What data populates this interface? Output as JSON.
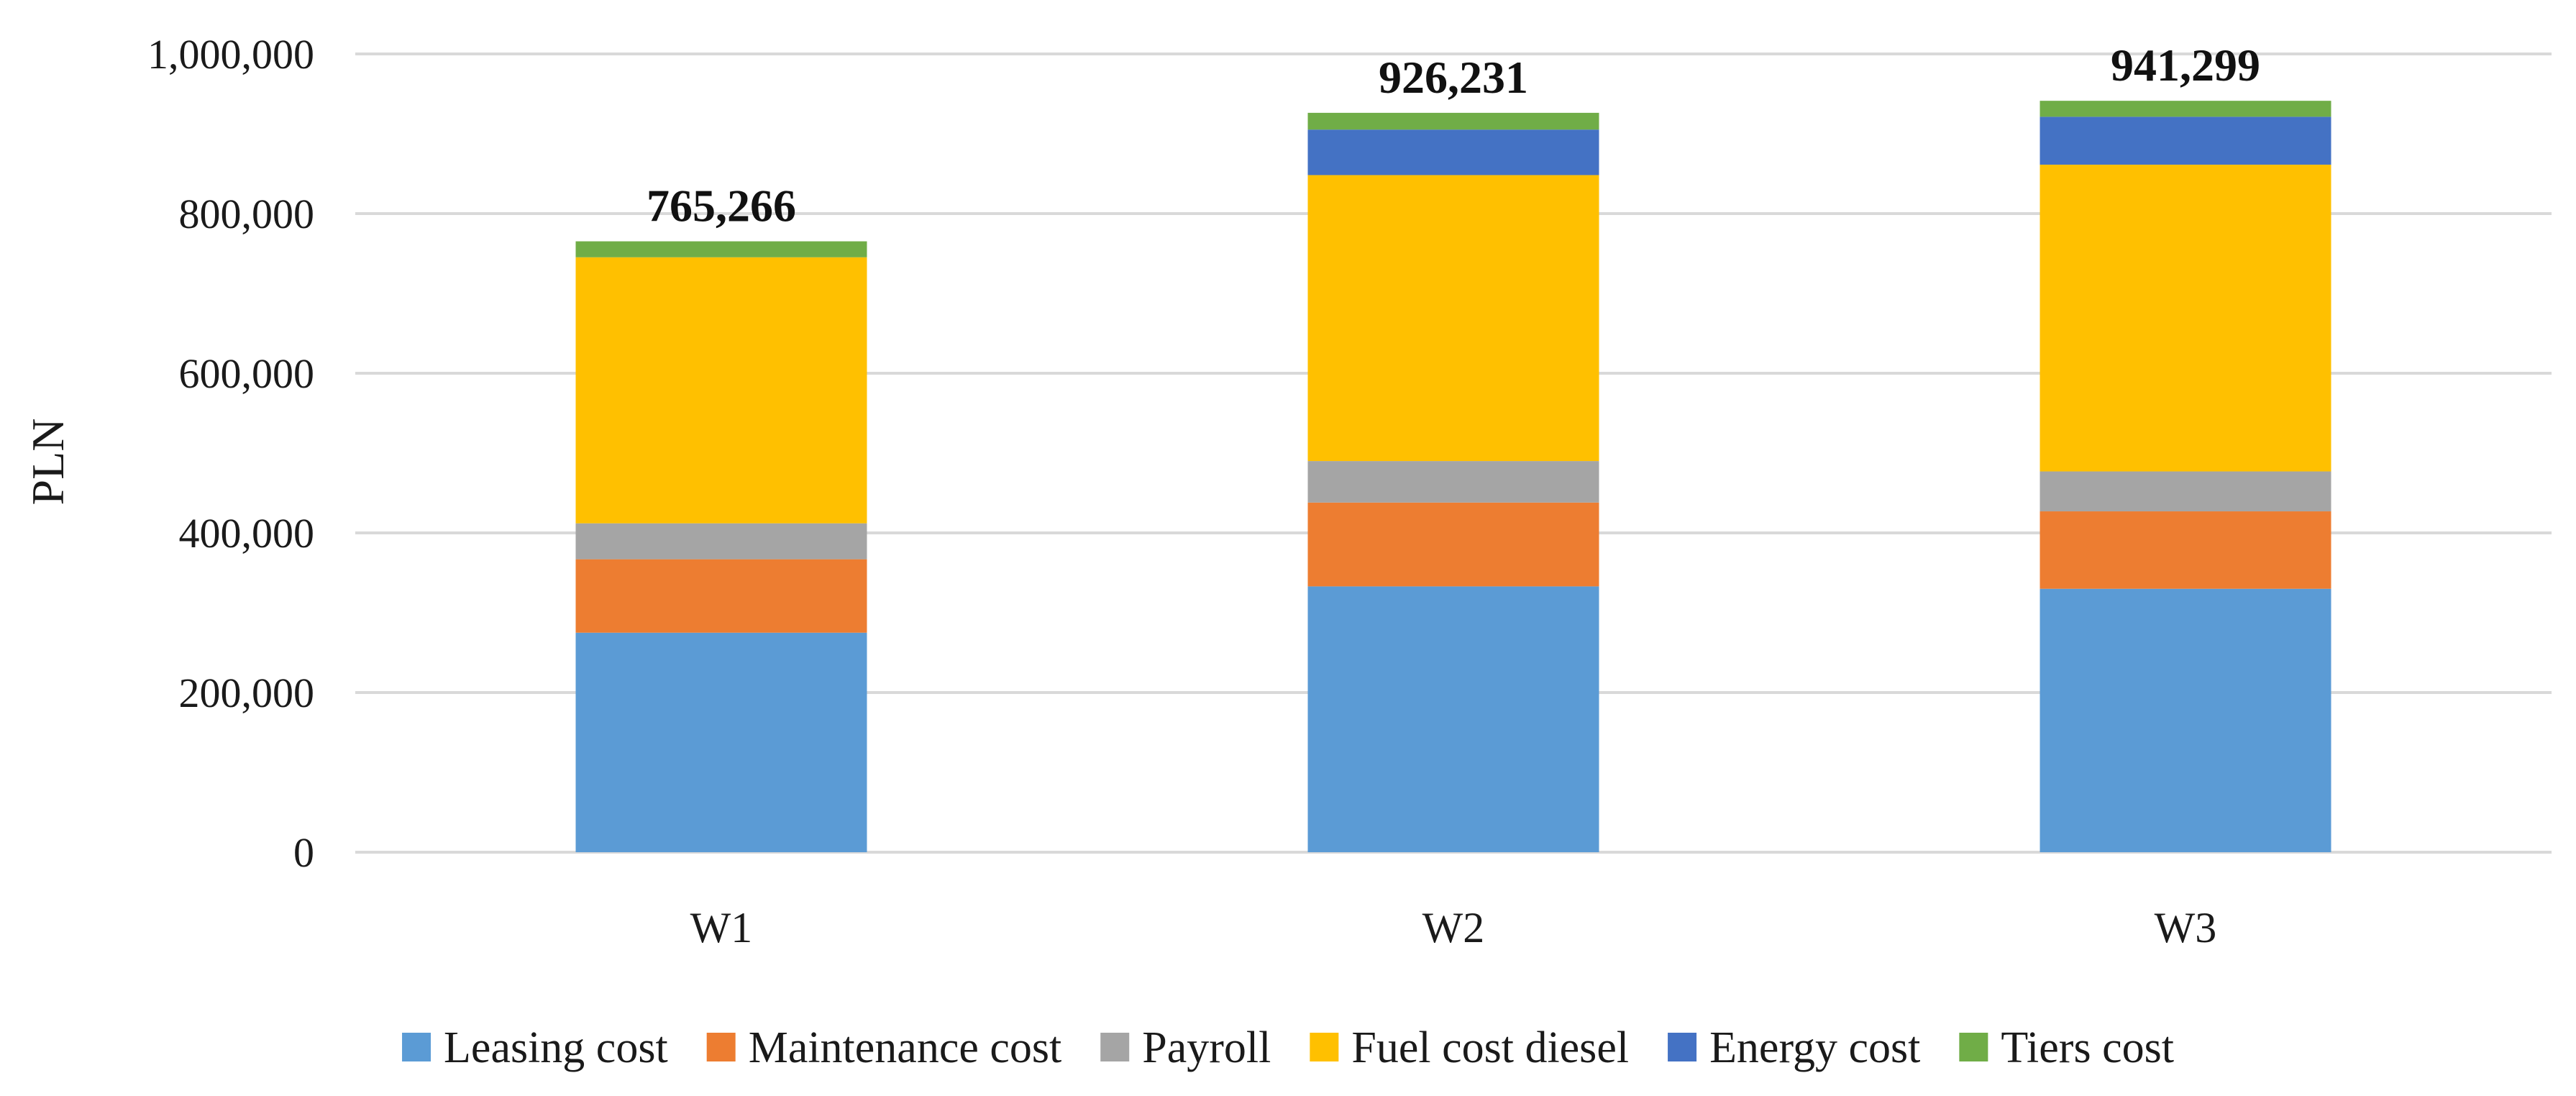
{
  "chart_data": {
    "type": "bar",
    "stacked": true,
    "title": "",
    "xlabel": "",
    "ylabel": "PLN",
    "ylim": [
      0,
      1000000
    ],
    "yticks": [
      0,
      200000,
      400000,
      600000,
      800000,
      1000000
    ],
    "ytick_labels": [
      "0",
      "200,000",
      "400,000",
      "600,000",
      "800,000",
      "1,000,000"
    ],
    "grid": true,
    "legend_position": "bottom",
    "categories": [
      "W1",
      "W2",
      "W3"
    ],
    "totals": [
      765266,
      926231,
      941299
    ],
    "total_labels": [
      "765,266",
      "926,231",
      "941,299"
    ],
    "series": [
      {
        "name": "Leasing cost",
        "color": "#5B9BD5",
        "values": [
          275000,
          333000,
          330000
        ]
      },
      {
        "name": "Maintenance cost",
        "color": "#ED7D31",
        "values": [
          92000,
          105000,
          97000
        ]
      },
      {
        "name": "Payroll",
        "color": "#A5A5A5",
        "values": [
          45000,
          52000,
          50000
        ]
      },
      {
        "name": "Fuel cost diesel",
        "color": "#FFC000",
        "values": [
          333266,
          358231,
          384299
        ]
      },
      {
        "name": "Energy cost",
        "color": "#4472C4",
        "values": [
          0,
          57000,
          60000
        ]
      },
      {
        "name": "Tiers cost",
        "color": "#70AD47",
        "values": [
          20000,
          21000,
          20000
        ]
      }
    ]
  }
}
